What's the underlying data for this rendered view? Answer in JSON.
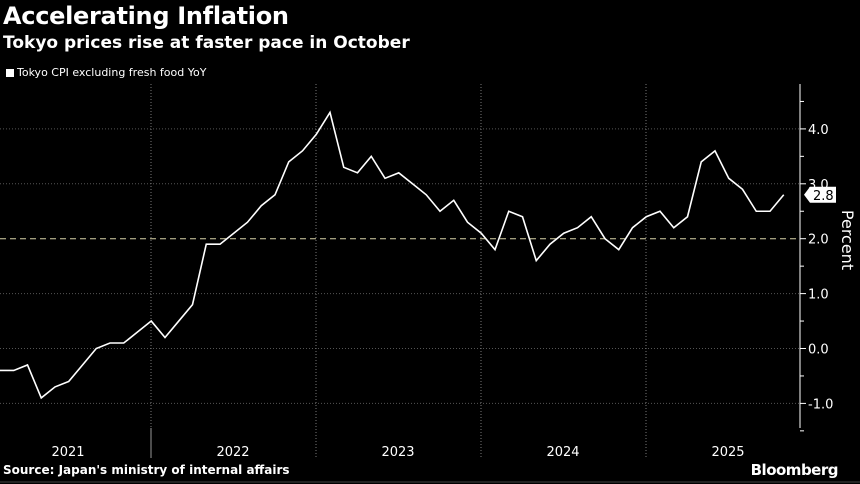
{
  "header": {
    "title": "Accelerating Inflation",
    "subtitle": "Tokyo prices rise at faster pace in October"
  },
  "footer": {
    "source": "Source: Japan's ministry of internal affairs",
    "logo": "Bloomberg"
  },
  "colors": {
    "background": "#000000",
    "line": "#ffffff",
    "target_line": "#d8d2a8",
    "grid": "#555555"
  },
  "chart_data": {
    "type": "line",
    "title": "Accelerating Inflation",
    "subtitle": "Tokyo prices rise at faster pace in October",
    "ylabel": "Percent",
    "ylim": [
      -1.5,
      4.8
    ],
    "yticks": [
      "4.0",
      "3.0",
      "2.0",
      "1.0",
      "0.0",
      "-1.0"
    ],
    "xticks": [
      "2021",
      "2022",
      "2023",
      "2024",
      "2025"
    ],
    "x_start": "2021-01",
    "x_end": "2025-10",
    "frequency": "monthly",
    "grid": true,
    "legend": "top-left",
    "reference_line": 2.0,
    "last_value_label": "2.8",
    "series": [
      {
        "name": "Tokyo CPI excluding fresh food YoY",
        "values": [
          -0.4,
          -0.4,
          -0.3,
          -0.9,
          -0.7,
          -0.6,
          -0.3,
          0.0,
          0.1,
          0.1,
          0.3,
          0.5,
          0.2,
          0.5,
          0.8,
          1.9,
          1.9,
          2.1,
          2.3,
          2.6,
          2.8,
          3.4,
          3.6,
          3.9,
          4.3,
          3.3,
          3.2,
          3.5,
          3.1,
          3.2,
          3.0,
          2.8,
          2.5,
          2.7,
          2.3,
          2.1,
          1.8,
          2.5,
          2.4,
          1.6,
          1.9,
          2.1,
          2.2,
          2.4,
          2.0,
          1.8,
          2.2,
          2.4,
          2.5,
          2.2,
          2.4,
          3.4,
          3.6,
          3.1,
          2.9,
          2.5,
          2.5,
          2.8
        ]
      }
    ]
  }
}
